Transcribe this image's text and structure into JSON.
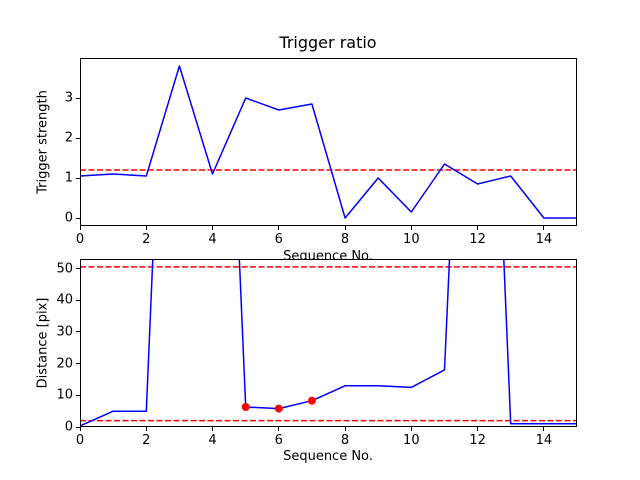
{
  "figure": {
    "background": "#ffffff",
    "line_color": "#0000ff",
    "threshold_color": "#ff0000",
    "marker_color": "#ff0000"
  },
  "chart_data": [
    {
      "type": "line",
      "title": "Trigger ratio",
      "xlabel": "Sequence No.",
      "ylabel": "Trigger strength",
      "xlim": [
        0,
        15
      ],
      "ylim": [
        -0.2,
        4.0
      ],
      "xticks": [
        0,
        2,
        4,
        6,
        8,
        10,
        12,
        14
      ],
      "yticks": [
        0,
        1,
        2,
        3
      ],
      "grid": false,
      "legend": "none",
      "x": [
        0,
        1,
        2,
        3,
        4,
        5,
        6,
        7,
        8,
        9,
        10,
        11,
        12,
        13,
        14,
        15
      ],
      "series": [
        {
          "name": "trigger-strength",
          "color": "#0000ff",
          "style": "solid",
          "values": [
            1.05,
            1.1,
            1.05,
            3.8,
            1.1,
            3.0,
            2.7,
            2.85,
            0.0,
            1.0,
            0.15,
            1.35,
            0.85,
            1.05,
            0.0,
            0.0
          ]
        }
      ],
      "hlines": [
        {
          "y": 1.2,
          "color": "#ff0000",
          "style": "dashed"
        }
      ],
      "markers": []
    },
    {
      "type": "line",
      "title": "",
      "xlabel": "Sequence No.",
      "ylabel": "Distance [pix]",
      "xlim": [
        0,
        15
      ],
      "ylim": [
        0,
        53
      ],
      "xticks": [
        0,
        2,
        4,
        6,
        8,
        10,
        12,
        14
      ],
      "yticks": [
        0,
        10,
        20,
        30,
        40,
        50
      ],
      "grid": false,
      "legend": "none",
      "x": [
        0,
        1,
        2,
        3,
        4,
        5,
        6,
        7,
        8,
        9,
        10,
        11,
        12,
        13,
        14,
        15
      ],
      "series": [
        {
          "name": "distance",
          "color": "#0000ff",
          "style": "solid",
          "values": [
            0.3,
            5,
            5,
            250,
            250,
            6.3,
            5.8,
            8.3,
            13,
            13,
            12.5,
            18,
            250,
            1,
            1,
            1
          ]
        }
      ],
      "hlines": [
        {
          "y": 50.5,
          "color": "#ff0000",
          "style": "dashed"
        },
        {
          "y": 2.0,
          "color": "#ff0000",
          "style": "dashed"
        }
      ],
      "markers": [
        {
          "x": 5,
          "y": 6.3
        },
        {
          "x": 6,
          "y": 5.8
        },
        {
          "x": 7,
          "y": 8.3
        }
      ]
    }
  ]
}
